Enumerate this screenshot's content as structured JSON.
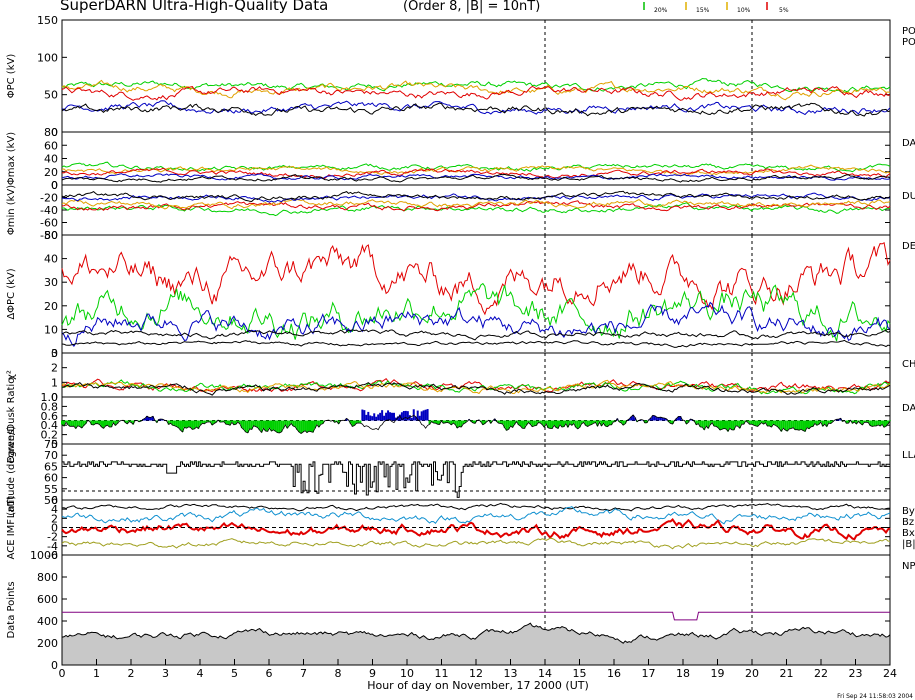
{
  "header": {
    "title": "SuperDARN Ultra-High-Quality Data",
    "subtitle": "(Order 8, |B| = 10nT)",
    "legend": [
      {
        "label": "20%",
        "color": "#00c000"
      },
      {
        "label": "15%",
        "color": "#e0b000"
      },
      {
        "label": "10%",
        "color": "#e0b000"
      },
      {
        "label": "5%",
        "color": "#e00000"
      }
    ]
  },
  "footer": {
    "xlabel": "Hour of day on November, 17 2000 (UT)",
    "timestamp": "Fri Sep 24 11:58:03 2004"
  },
  "colors": {
    "red": "#e00000",
    "green": "#00d000",
    "blue": "#0000c0",
    "orange": "#e0a000",
    "black": "#000000",
    "gray": "#c8c8c8",
    "purple": "#800080",
    "cyan": "#1090d0",
    "olive": "#a0a020"
  },
  "chart_data": [
    {
      "id": "phi_pc",
      "type": "line",
      "ylabel": "ΦPC (kV)",
      "right_labels": [
        "PO",
        "PO"
      ],
      "ylim": [
        0,
        150
      ],
      "yticks": [
        "0",
        "50",
        "100",
        "150"
      ],
      "series": [
        {
          "color": "green",
          "base": 62,
          "amp": 6
        },
        {
          "color": "orange",
          "base": 57,
          "amp": 7
        },
        {
          "color": "red",
          "base": 53,
          "amp": 7
        },
        {
          "color": "blue",
          "base": 32,
          "amp": 7
        },
        {
          "color": "black",
          "base": 30,
          "amp": 7
        }
      ]
    },
    {
      "id": "phi_max",
      "type": "line",
      "ylabel": "Φmax (kV)",
      "right_labels": [
        "DAY"
      ],
      "ylim": [
        0,
        80
      ],
      "yticks": [
        "0",
        "20",
        "40",
        "60",
        "80"
      ],
      "series": [
        {
          "color": "green",
          "base": 26,
          "amp": 5
        },
        {
          "color": "orange",
          "base": 22,
          "amp": 5
        },
        {
          "color": "red",
          "base": 18,
          "amp": 5
        },
        {
          "color": "blue",
          "base": 12,
          "amp": 4
        },
        {
          "color": "black",
          "base": 10,
          "amp": 4
        }
      ]
    },
    {
      "id": "phi_min",
      "type": "line",
      "ylabel": "Φmin (kV)",
      "right_labels": [
        "DU"
      ],
      "ylim": [
        -80,
        0
      ],
      "yticks": [
        "-80",
        "-60",
        "-40",
        "-20",
        "0"
      ],
      "series": [
        {
          "color": "green",
          "base": -38,
          "amp": 6
        },
        {
          "color": "red",
          "base": -34,
          "amp": 6
        },
        {
          "color": "orange",
          "base": -30,
          "amp": 6
        },
        {
          "color": "blue",
          "base": -20,
          "amp": 5
        },
        {
          "color": "black",
          "base": -18,
          "amp": 5
        }
      ]
    },
    {
      "id": "dphi_pc",
      "type": "line",
      "ylabel": "ΔΦPC (kV)",
      "right_labels": [
        "DE"
      ],
      "ylim": [
        0,
        50
      ],
      "yticks": [
        "0",
        "10",
        "20",
        "30",
        "40",
        "50"
      ],
      "series": [
        {
          "color": "red",
          "base": 33,
          "amp": 10
        },
        {
          "color": "green",
          "base": 18,
          "amp": 9
        },
        {
          "color": "blue",
          "base": 12,
          "amp": 6
        },
        {
          "color": "black",
          "base": 8,
          "amp": 1.5
        },
        {
          "color": "black",
          "base": 4,
          "amp": 1
        }
      ]
    },
    {
      "id": "chi2",
      "type": "line",
      "ylabel": "χ²",
      "right_labels": [
        "CH"
      ],
      "ylim": [
        0,
        3
      ],
      "yticks": [
        "0",
        "1",
        "2",
        "3"
      ],
      "series": [
        {
          "color": "red",
          "base": 0.75,
          "amp": 0.35
        },
        {
          "color": "green",
          "base": 0.7,
          "amp": 0.35
        },
        {
          "color": "orange",
          "base": 0.65,
          "amp": 0.3
        },
        {
          "color": "black",
          "base": 0.6,
          "amp": 0.3
        }
      ]
    },
    {
      "id": "dawn_dusk",
      "type": "area",
      "ylabel": "Dawn/Dusk Ratio",
      "right_labels": [
        "DAY"
      ],
      "ylim": [
        0,
        1.0
      ],
      "yticks": [
        "0",
        "0.2",
        "0.4",
        "0.6",
        "0.8",
        "1.0"
      ],
      "reference": 0.5
    },
    {
      "id": "latitude",
      "type": "step",
      "ylabel": "Latitude (degrees)",
      "right_labels": [
        "LLA"
      ],
      "ylim": [
        50,
        75
      ],
      "yticks": [
        "50",
        "55",
        "60",
        "65",
        "70",
        "75"
      ],
      "reference": 54
    },
    {
      "id": "ace_imf",
      "type": "line",
      "ylabel": "ACE IMF (nT)",
      "right_labels": [
        "By",
        "Bz",
        "Bx",
        "|B|"
      ],
      "ylim": [
        -6,
        6
      ],
      "yticks": [
        "-6",
        "-4",
        "-2",
        "0",
        "2",
        "4",
        "6"
      ],
      "series": [
        {
          "color": "black",
          "base": 4.5,
          "amp": 0.6
        },
        {
          "color": "cyan",
          "base": 2.5,
          "amp": 1.2
        },
        {
          "color": "red",
          "base": -0.5,
          "amp": 1.4
        },
        {
          "color": "olive",
          "base": -3.5,
          "amp": 0.8
        }
      ]
    },
    {
      "id": "data_points",
      "type": "area",
      "ylabel": "Data Points",
      "right_labels": [
        "NP"
      ],
      "ylim": [
        0,
        1000
      ],
      "yticks": [
        "0",
        "200",
        "400",
        "600",
        "800",
        "1000"
      ],
      "reference": 480
    }
  ],
  "x_axis": {
    "range": [
      0,
      24
    ],
    "ticks": [
      "0",
      "1",
      "2",
      "3",
      "4",
      "5",
      "6",
      "7",
      "8",
      "9",
      "10",
      "11",
      "12",
      "13",
      "14",
      "15",
      "16",
      "17",
      "18",
      "19",
      "20",
      "21",
      "22",
      "23",
      "24"
    ],
    "dashed_hours": [
      14,
      20
    ]
  }
}
